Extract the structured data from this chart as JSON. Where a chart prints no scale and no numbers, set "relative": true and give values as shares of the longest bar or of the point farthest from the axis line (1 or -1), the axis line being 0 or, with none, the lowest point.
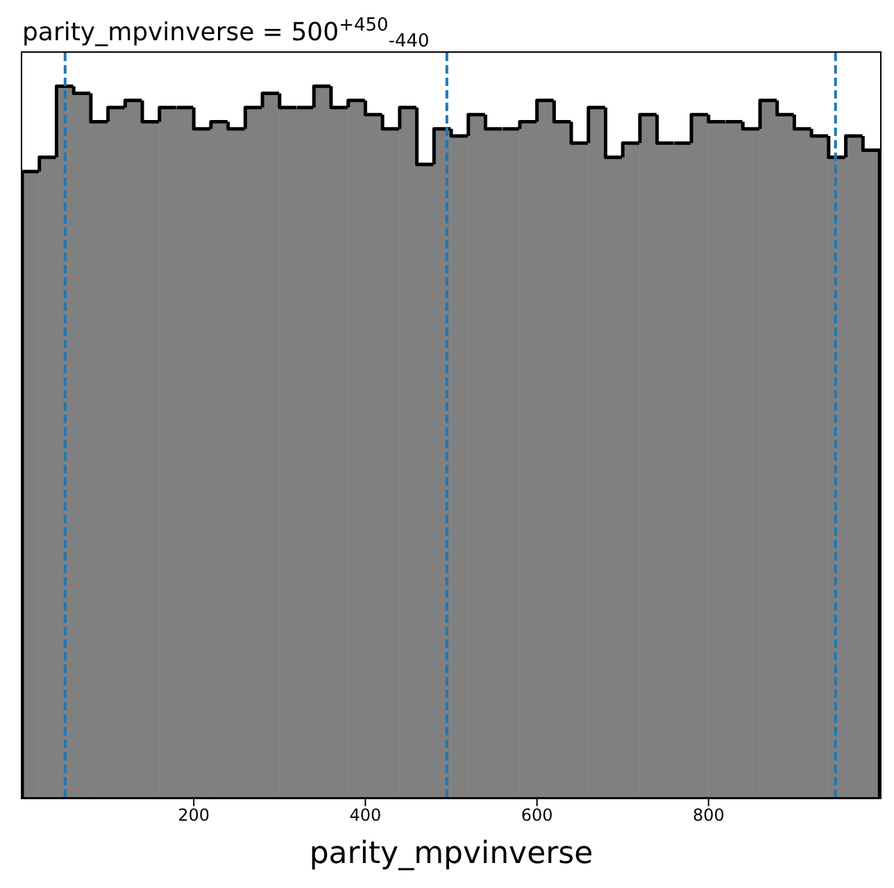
{
  "chart_data": {
    "type": "bar",
    "title": "parity_mpvinverse = 500$^{+450}$$_{-440}$",
    "xlabel": "parity_mpvinverse",
    "relative": true,
    "color": "#808080",
    "x": [
      10,
      30,
      50,
      70,
      90,
      110,
      130,
      150,
      170,
      190,
      210,
      230,
      250,
      270,
      290,
      310,
      330,
      350,
      370,
      390,
      410,
      430,
      450,
      470,
      490,
      510,
      530,
      550,
      570,
      590,
      610,
      630,
      650,
      670,
      690,
      710,
      730,
      750,
      770,
      790,
      810,
      830,
      850,
      870,
      890,
      910,
      930,
      950,
      970,
      990
    ],
    "values": [
      0.88,
      0.9,
      1.0,
      0.99,
      0.95,
      0.97,
      0.98,
      0.95,
      0.97,
      0.97,
      0.94,
      0.95,
      0.94,
      0.97,
      0.99,
      0.97,
      0.97,
      1.0,
      0.97,
      0.98,
      0.96,
      0.94,
      0.97,
      0.89,
      0.94,
      0.93,
      0.96,
      0.94,
      0.94,
      0.95,
      0.98,
      0.95,
      0.92,
      0.97,
      0.9,
      0.92,
      0.96,
      0.92,
      0.92,
      0.96,
      0.95,
      0.95,
      0.94,
      0.98,
      0.96,
      0.94,
      0.93,
      0.9,
      0.93,
      0.91
    ],
    "xlim": [
      0,
      1000
    ],
    "xticks": [
      200,
      400,
      600,
      800
    ],
    "ref_lines": [
      {
        "axis": "x",
        "value": 50,
        "color": "#1f77b4",
        "line_style": "dashed"
      },
      {
        "axis": "x",
        "value": 495,
        "color": "#1f77b4",
        "line_style": "dashed"
      },
      {
        "axis": "x",
        "value": 948,
        "color": "#1f77b4",
        "line_style": "dashed"
      }
    ],
    "grid": false,
    "legend": false
  }
}
